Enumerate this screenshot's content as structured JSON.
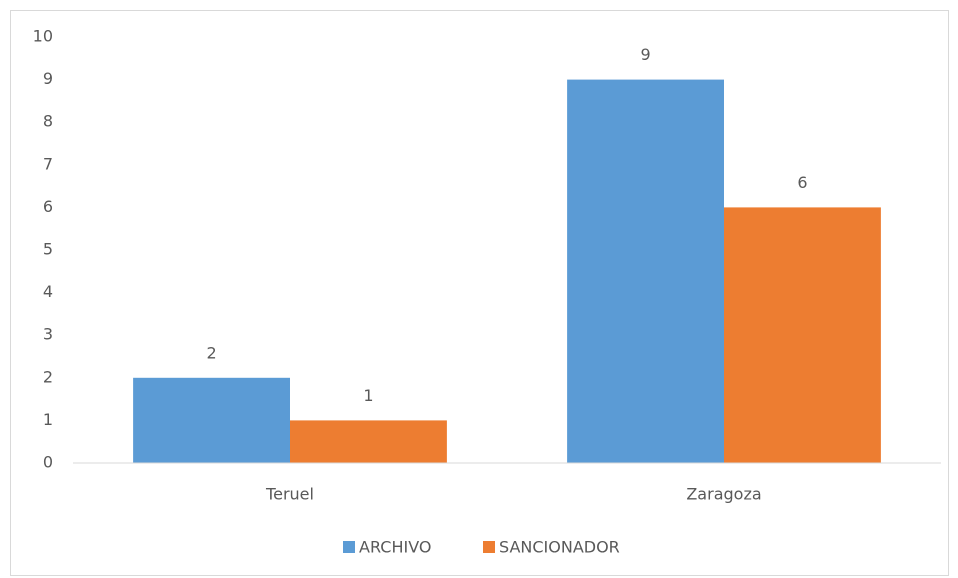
{
  "chart_data": {
    "type": "bar",
    "categories": [
      "Teruel",
      "Zaragoza"
    ],
    "series": [
      {
        "name": "ARCHIVO",
        "color": "#5b9bd5",
        "values": [
          2,
          9
        ]
      },
      {
        "name": "SANCIONADOR",
        "color": "#ed7d31",
        "values": [
          1,
          6
        ]
      }
    ],
    "ylim": [
      0,
      10
    ],
    "yticks": [
      0,
      1,
      2,
      3,
      4,
      5,
      6,
      7,
      8,
      9,
      10
    ],
    "grid": false,
    "legend": "bottom",
    "data_labels": true
  }
}
